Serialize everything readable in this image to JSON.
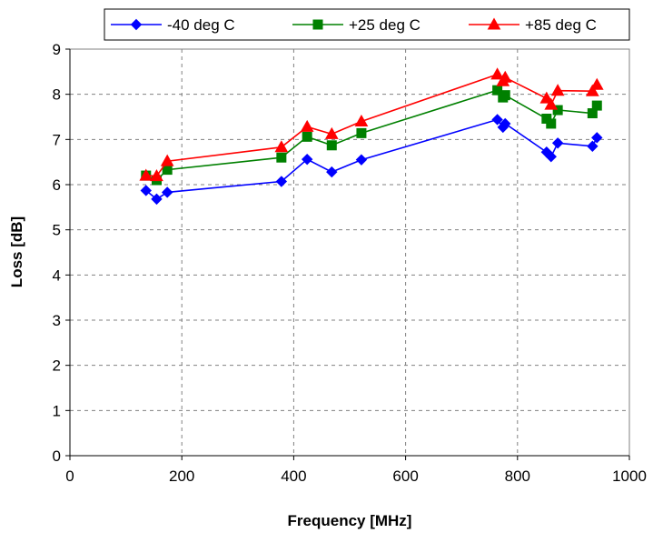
{
  "chart_data": {
    "type": "line",
    "title": "",
    "xlabel": "Frequency [MHz]",
    "ylabel": "Loss [dB]",
    "xlim": [
      0,
      1000
    ],
    "ylim": [
      0,
      9
    ],
    "xticks": [
      "0",
      "200",
      "400",
      "600",
      "800",
      "1000"
    ],
    "yticks": [
      "0",
      "1",
      "2",
      "3",
      "4",
      "5",
      "6",
      "7",
      "8",
      "9"
    ],
    "grid": true,
    "legend_position": "top",
    "series": [
      {
        "name": "-40 deg C",
        "color": "#0000ff",
        "marker": "diamond",
        "points": [
          [
            136,
            5.87
          ],
          [
            155,
            5.68
          ],
          [
            174,
            5.83
          ],
          [
            378,
            6.07
          ],
          [
            424,
            6.56
          ],
          [
            468,
            6.28
          ],
          [
            521,
            6.55
          ],
          [
            764,
            7.44
          ],
          [
            774,
            7.27
          ],
          [
            778,
            7.35
          ],
          [
            852,
            6.72
          ],
          [
            860,
            6.62
          ],
          [
            872,
            6.92
          ],
          [
            934,
            6.85
          ],
          [
            942,
            7.04
          ]
        ]
      },
      {
        "name": "+25 deg C",
        "color": "#008000",
        "marker": "square",
        "points": [
          [
            136,
            6.2
          ],
          [
            155,
            6.1
          ],
          [
            174,
            6.33
          ],
          [
            378,
            6.6
          ],
          [
            424,
            7.06
          ],
          [
            468,
            6.87
          ],
          [
            521,
            7.14
          ],
          [
            764,
            8.09
          ],
          [
            774,
            7.93
          ],
          [
            778,
            7.98
          ],
          [
            852,
            7.46
          ],
          [
            860,
            7.35
          ],
          [
            872,
            7.65
          ],
          [
            934,
            7.58
          ],
          [
            942,
            7.75
          ]
        ]
      },
      {
        "name": "+85 deg C",
        "color": "#ff0000",
        "marker": "triangle",
        "points": [
          [
            136,
            6.2
          ],
          [
            155,
            6.19
          ],
          [
            174,
            6.52
          ],
          [
            378,
            6.83
          ],
          [
            424,
            7.28
          ],
          [
            468,
            7.12
          ],
          [
            521,
            7.4
          ],
          [
            764,
            8.44
          ],
          [
            774,
            8.29
          ],
          [
            778,
            8.37
          ],
          [
            852,
            7.91
          ],
          [
            860,
            7.77
          ],
          [
            872,
            8.08
          ],
          [
            934,
            8.07
          ],
          [
            942,
            8.21
          ]
        ]
      }
    ]
  }
}
